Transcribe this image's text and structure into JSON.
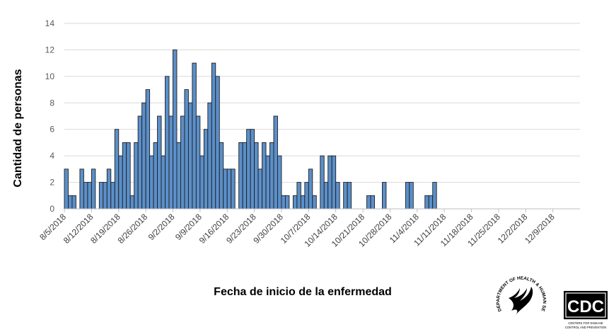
{
  "chart_data": {
    "type": "bar",
    "title": "",
    "xlabel": "Fecha de inicio de la enfermedad",
    "ylabel": "Cantidad de personas",
    "ylim": [
      0,
      14
    ],
    "yticks": [
      0,
      2,
      4,
      6,
      8,
      10,
      12,
      14
    ],
    "grid": true,
    "x_start": "8/5/2018",
    "xtick_labels": [
      "8/5/2018",
      "8/12/2018",
      "8/19/2018",
      "8/26/2018",
      "9/2/2018",
      "9/9/2018",
      "9/16/2018",
      "9/23/2018",
      "9/30/2018",
      "10/7/2018",
      "10/14/2018",
      "10/21/2018",
      "10/28/2018",
      "11/4/2018",
      "11/11/2018",
      "11/18/2018",
      "11/25/2018",
      "12/2/2018",
      "12/9/2018"
    ],
    "values": [
      3,
      1,
      1,
      0,
      3,
      2,
      2,
      3,
      0,
      2,
      2,
      3,
      2,
      6,
      4,
      5,
      5,
      1,
      5,
      7,
      8,
      9,
      4,
      5,
      7,
      4,
      10,
      7,
      12,
      5,
      7,
      9,
      8,
      11,
      7,
      4,
      6,
      8,
      11,
      10,
      5,
      3,
      3,
      3,
      0,
      5,
      5,
      6,
      6,
      5,
      3,
      5,
      4,
      5,
      7,
      4,
      1,
      1,
      0,
      1,
      2,
      1,
      2,
      3,
      1,
      0,
      4,
      2,
      4,
      4,
      2,
      0,
      2,
      2,
      0,
      0,
      0,
      0,
      1,
      1,
      0,
      0,
      2,
      0,
      0,
      0,
      0,
      0,
      2,
      2,
      0,
      0,
      0,
      1,
      1,
      2,
      0,
      0,
      0,
      0,
      0,
      0,
      0,
      0,
      0,
      0,
      0,
      0,
      0,
      0,
      0,
      0,
      0,
      0,
      0,
      0,
      0,
      0,
      0,
      0,
      0,
      0,
      0,
      0,
      0,
      0,
      0,
      0,
      0,
      0,
      0
    ],
    "bar_color": "#5b8fc9",
    "bar_edge_color": "#1f1f1f",
    "grid_color": "#d9d9d9"
  },
  "logos": {
    "hhs_text": "DEPARTMENT OF HEALTH & HUMAN SERVICES USA",
    "cdc_text": "CDC",
    "cdc_subtext_1": "CENTERS FOR DISEASE",
    "cdc_subtext_2": "CONTROL AND PREVENTION"
  }
}
